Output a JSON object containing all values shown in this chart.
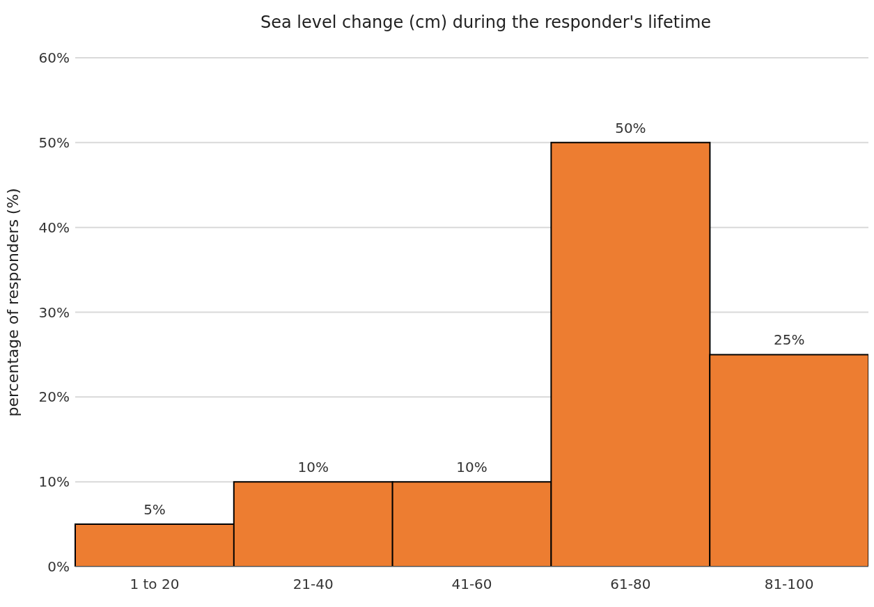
{
  "chart_data": {
    "type": "bar",
    "title": "Sea level change (cm) during the responder's lifetime",
    "ylabel": "percentage of responders (%)",
    "categories": [
      "1 to 20",
      "21-40",
      "41-60",
      "61-80",
      "81-100"
    ],
    "values": [
      5,
      10,
      10,
      50,
      25
    ],
    "value_labels": [
      "5%",
      "10%",
      "10%",
      "50%",
      "25%"
    ],
    "color": "#ed7d31",
    "ylim": [
      0,
      60
    ],
    "yticks": [
      {
        "value": 0,
        "label": "0%"
      },
      {
        "value": 10,
        "label": "10%"
      },
      {
        "value": 20,
        "label": "20%"
      },
      {
        "value": 30,
        "label": "30%"
      },
      {
        "value": 40,
        "label": "40%"
      },
      {
        "value": 50,
        "label": "50%"
      },
      {
        "value": 60,
        "label": "60%"
      }
    ],
    "grid": "y"
  }
}
